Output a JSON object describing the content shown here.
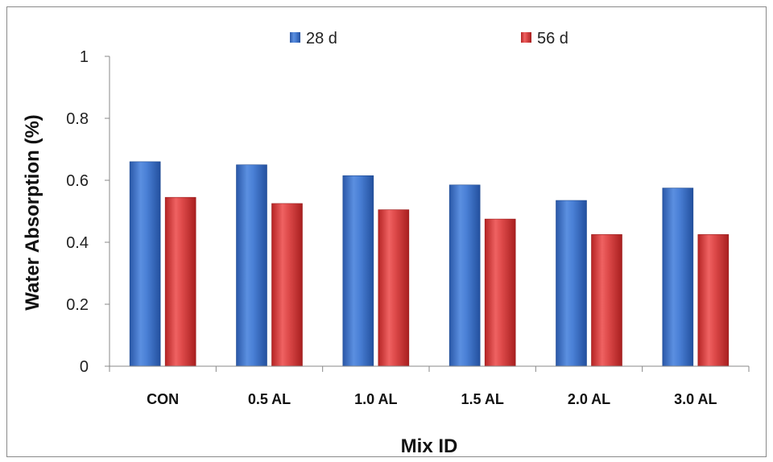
{
  "chart_data": {
    "type": "bar",
    "categories": [
      "CON",
      "0.5 AL",
      "1.0 AL",
      "1.5 AL",
      "2.0 AL",
      "3.0 AL"
    ],
    "series": [
      {
        "name": "28 d",
        "values": [
          0.66,
          0.65,
          0.615,
          0.585,
          0.535,
          0.575
        ],
        "color": "#3a6fc4"
      },
      {
        "name": "56 d",
        "values": [
          0.545,
          0.525,
          0.505,
          0.475,
          0.425,
          0.425
        ],
        "color": "#d63a3a"
      }
    ],
    "xlabel": "Mix ID",
    "ylabel": "Water Absorption (%)",
    "ylim": [
      0,
      1
    ],
    "yticks": [
      "0",
      "0.2",
      "0.4",
      "0.6",
      "0.8",
      "1"
    ],
    "yticks_values": [
      0,
      0.2,
      0.4,
      0.6,
      0.8,
      1
    ],
    "grid": false,
    "legend_position": "top"
  }
}
